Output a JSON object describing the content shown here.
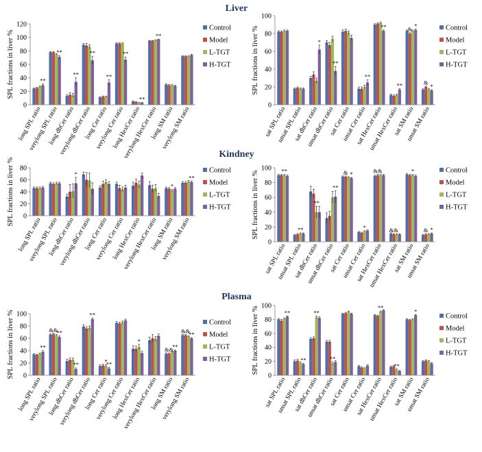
{
  "colors": {
    "Control": "#4F6FA8",
    "Model": "#C0504D",
    "L-TGT": "#9BBB59",
    "H-TGT": "#7F5FA0"
  },
  "legend": [
    "Control",
    "Model",
    "L-TGT",
    "H-TGT"
  ],
  "section_titles": [
    "Liver",
    "Kindney",
    "Plasma"
  ],
  "chart_data": [
    {
      "type": "bar",
      "section": "Liver",
      "panel": "left",
      "ylabel": "SPL fractions in liver %",
      "ylim": [
        0,
        120
      ],
      "yticks": [
        0,
        20,
        40,
        60,
        80,
        100,
        120
      ],
      "legend_position": "right",
      "categories": [
        "long SPL ratio",
        "verylong SPL ratio",
        "long dhCer ratio",
        "verylong dhCer ratio",
        "long Cer ratio",
        "verylong Cer ratio",
        "long HexCer ratio",
        "verylong HexCer ratio",
        "long SM ratio",
        "verylong SM ratio"
      ],
      "series": [
        {
          "name": "Control",
          "values": [
            24,
            78,
            13,
            89,
            11,
            91,
            5,
            95,
            30,
            72
          ],
          "errors": [
            1,
            1,
            2,
            2,
            1,
            1,
            0.5,
            0.5,
            1,
            1
          ]
        },
        {
          "name": "Model",
          "values": [
            25,
            78,
            15,
            88,
            12,
            91,
            4,
            95,
            29,
            72
          ],
          "errors": [
            1,
            1,
            3,
            3,
            1,
            1,
            0.5,
            0.5,
            1,
            1
          ]
        },
        {
          "name": "L-TGT",
          "values": [
            27,
            75,
            14,
            86,
            12,
            91,
            3,
            96,
            29,
            72
          ],
          "errors": [
            1,
            1,
            3,
            3,
            1,
            1,
            0.5,
            0.5,
            1,
            1
          ]
        },
        {
          "name": "H-TGT",
          "values": [
            29,
            71,
            34,
            66,
            33,
            67,
            3,
            97,
            28,
            74
          ],
          "errors": [
            2,
            2,
            6,
            6,
            4,
            4,
            0.5,
            0.5,
            1,
            1
          ]
        }
      ],
      "annotations": [
        {
          "category": 0,
          "series": 3,
          "label": "**"
        },
        {
          "category": 1,
          "series": 3,
          "label": "**"
        },
        {
          "category": 2,
          "series": 3,
          "label": "**"
        },
        {
          "category": 3,
          "series": 3,
          "label": "**"
        },
        {
          "category": 4,
          "series": 3,
          "label": "**"
        },
        {
          "category": 5,
          "series": 3,
          "label": "**"
        },
        {
          "category": 6,
          "series": 3,
          "label": "**"
        },
        {
          "category": 7,
          "series": 3,
          "label": "**"
        }
      ]
    },
    {
      "type": "bar",
      "section": "Liver",
      "panel": "right",
      "ylabel": "SPL fractions in liver %",
      "ylim": [
        0,
        100
      ],
      "yticks": [
        0,
        20,
        40,
        60,
        80,
        100
      ],
      "legend_position": "right",
      "categories": [
        "sat SPL ratio",
        "unsat SPL ratio",
        "sat dhCer ratio",
        "unsat dhCer ratio",
        "sat Cer ratio",
        "unsat Cer ratio",
        "sat HexCer ratio",
        "unsat HexCer ratio",
        "sat SM ratio",
        "unsat SM ratio"
      ],
      "series": [
        {
          "name": "Control",
          "values": [
            82,
            18,
            30,
            70,
            82,
            18,
            90,
            11,
            83,
            17
          ],
          "errors": [
            1,
            1,
            2,
            2,
            2,
            2,
            1,
            1,
            1,
            1
          ]
        },
        {
          "name": "Model",
          "values": [
            82,
            19,
            34,
            67,
            83,
            18,
            91,
            10,
            80,
            20
          ],
          "errors": [
            1,
            1,
            3,
            3,
            2,
            2,
            1,
            1,
            1,
            1
          ]
        },
        {
          "name": "L-TGT",
          "values": [
            83,
            18,
            27,
            74,
            81,
            20,
            92,
            11,
            83,
            17
          ],
          "errors": [
            1,
            1,
            3,
            3,
            2,
            2,
            1,
            1,
            1,
            1
          ]
        },
        {
          "name": "H-TGT",
          "values": [
            83,
            18,
            62,
            38,
            75,
            25,
            83,
            17,
            84,
            16
          ],
          "errors": [
            1,
            1,
            5,
            5,
            3,
            3,
            1,
            1,
            1,
            1
          ]
        }
      ],
      "annotations": [
        {
          "category": 2,
          "series": 3,
          "label": "*"
        },
        {
          "category": 3,
          "series": 3,
          "label": "**"
        },
        {
          "category": 5,
          "series": 3,
          "label": "**"
        },
        {
          "category": 6,
          "series": 3,
          "label": "**"
        },
        {
          "category": 7,
          "series": 3,
          "label": "**"
        },
        {
          "category": 8,
          "series": 1,
          "label": "&"
        },
        {
          "category": 8,
          "series": 3,
          "label": "*"
        },
        {
          "category": 9,
          "series": 1,
          "label": "&"
        },
        {
          "category": 9,
          "series": 3,
          "label": "*"
        }
      ]
    },
    {
      "type": "bar",
      "section": "Kindney",
      "panel": "left",
      "ylabel": "SPL fractions in liver %",
      "ylim": [
        0,
        80
      ],
      "yticks": [
        0,
        20,
        40,
        60,
        80
      ],
      "legend_position": "right",
      "categories": [
        "long SPL ratio",
        "verylong SPL ratio",
        "long dhCer ratio",
        "verylong dhCer ratio",
        "long Cer ratio",
        "verylong Cer ratio",
        "long HexCer ratio",
        "verylong HexCer ratio",
        "long SM ratio",
        "verylong SM ratio"
      ],
      "series": [
        {
          "name": "Control",
          "values": [
            46,
            54,
            32,
            69,
            47,
            53,
            50,
            51,
            46,
            55
          ],
          "errors": [
            2,
            2,
            4,
            4,
            3,
            3,
            6,
            6,
            2,
            2
          ]
        },
        {
          "name": "Model",
          "values": [
            46,
            53,
            40,
            60,
            53,
            46,
            55,
            45,
            45,
            55
          ],
          "errors": [
            2,
            2,
            12,
            12,
            5,
            5,
            6,
            6,
            2,
            2
          ]
        },
        {
          "name": "L-TGT",
          "values": [
            46,
            54,
            41,
            59,
            56,
            44,
            52,
            46,
            42,
            57
          ],
          "errors": [
            2,
            2,
            12,
            12,
            4,
            4,
            6,
            6,
            2,
            2
          ]
        },
        {
          "name": "H-TGT",
          "values": [
            47,
            54,
            54,
            45,
            53,
            47,
            67,
            33,
            45,
            56
          ],
          "errors": [
            2,
            2,
            10,
            10,
            4,
            4,
            4,
            4,
            2,
            2
          ]
        }
      ],
      "annotations": [
        {
          "category": 2,
          "series": 3,
          "label": "*"
        },
        {
          "category": 8,
          "series": 2,
          "label": "*"
        },
        {
          "category": 9,
          "series": 3,
          "label": "**"
        }
      ]
    },
    {
      "type": "bar",
      "section": "Kindney",
      "panel": "right",
      "ylabel": "SPL fractions in liver %",
      "ylim": [
        0,
        100
      ],
      "yticks": [
        0,
        20,
        40,
        60,
        80,
        100
      ],
      "legend_position": "right",
      "categories": [
        "sat SPL ratio",
        "unsat SPL ratio",
        "sat dhCer ratio",
        "unsat dhCer ratio",
        "sat Cer ratio",
        "unsat Cer ratio",
        "sat HexCer ratio",
        "unsat HexCer ratio",
        "sat SM ratio",
        "unsat SM ratio"
      ],
      "series": [
        {
          "name": "Control",
          "values": [
            90,
            9,
            68,
            32,
            88,
            13,
            89,
            11,
            91,
            9
          ],
          "errors": [
            1,
            1,
            7,
            7,
            1,
            1,
            1,
            1,
            1,
            1
          ]
        },
        {
          "name": "Model",
          "values": [
            90,
            10,
            65,
            35,
            88,
            12,
            90,
            10,
            90,
            10
          ],
          "errors": [
            1,
            1,
            6,
            6,
            1,
            1,
            1,
            1,
            1,
            1
          ]
        },
        {
          "name": "L-TGT",
          "values": [
            90,
            11,
            40,
            60,
            87,
            14,
            90,
            10,
            90,
            10
          ],
          "errors": [
            1,
            1,
            8,
            8,
            1,
            1,
            1,
            1,
            1,
            1
          ]
        },
        {
          "name": "H-TGT",
          "values": [
            89,
            11,
            40,
            61,
            86,
            15,
            90,
            10,
            89,
            11
          ],
          "errors": [
            1,
            1,
            8,
            8,
            1,
            1,
            1,
            1,
            1,
            1
          ]
        }
      ],
      "annotations": [
        {
          "category": 0,
          "series": 2,
          "label": "**"
        },
        {
          "category": 1,
          "series": 2,
          "label": "**"
        },
        {
          "category": 2,
          "series": 2,
          "label": "**"
        },
        {
          "category": 3,
          "series": 3,
          "label": "**"
        },
        {
          "category": 4,
          "series": 1,
          "label": "&"
        },
        {
          "category": 4,
          "series": 3,
          "label": "*"
        },
        {
          "category": 5,
          "series": 2,
          "label": "*"
        },
        {
          "category": 6,
          "series": 1,
          "label": "&&"
        },
        {
          "category": 7,
          "series": 1,
          "label": "&&"
        },
        {
          "category": 8,
          "series": 2,
          "label": "*"
        },
        {
          "category": 9,
          "series": 1,
          "label": "&"
        },
        {
          "category": 9,
          "series": 3,
          "label": "*"
        }
      ]
    },
    {
      "type": "bar",
      "section": "Plasma",
      "panel": "left",
      "ylabel": "SPL fractions in liver %",
      "ylim": [
        0,
        100
      ],
      "yticks": [
        0,
        20,
        40,
        60,
        80,
        100
      ],
      "legend_position": "right",
      "categories": [
        "long SPL ratio",
        "verylong SPL ratio",
        "long dhCer ratio",
        "verylong dhCer ratio",
        "long Cer ratio",
        "verylong Cer ratio",
        "long HexCer ratio",
        "verylong HexCer ratio",
        "long SM ratio",
        "verylong SM ratio"
      ],
      "series": [
        {
          "name": "Control",
          "values": [
            34,
            66,
            23,
            79,
            15,
            85,
            43,
            57,
            35,
            65
          ],
          "errors": [
            1,
            1,
            3,
            3,
            2,
            2,
            5,
            5,
            1,
            1
          ]
        },
        {
          "name": "Model",
          "values": [
            33,
            67,
            25,
            76,
            16,
            84,
            43,
            60,
            35,
            65
          ],
          "errors": [
            1,
            1,
            3,
            3,
            2,
            2,
            4,
            6,
            1,
            1
          ]
        },
        {
          "name": "L-TGT",
          "values": [
            35,
            65,
            25,
            77,
            15,
            86,
            46,
            59,
            37,
            63
          ],
          "errors": [
            1,
            1,
            3,
            3,
            2,
            2,
            4,
            4,
            1,
            1
          ]
        },
        {
          "name": "H-TGT",
          "values": [
            38,
            62,
            10,
            91,
            11,
            89,
            36,
            64,
            40,
            60
          ],
          "errors": [
            2,
            2,
            2,
            2,
            2,
            2,
            3,
            3,
            1,
            1
          ]
        }
      ],
      "annotations": [
        {
          "category": 0,
          "series": 3,
          "label": "**"
        },
        {
          "category": 1,
          "series": 1,
          "label": "&&"
        },
        {
          "category": 1,
          "series": 3,
          "label": "**"
        },
        {
          "category": 2,
          "series": 3,
          "label": "**"
        },
        {
          "category": 3,
          "series": 3,
          "label": "**"
        },
        {
          "category": 4,
          "series": 2,
          "label": "*"
        },
        {
          "category": 4,
          "series": 3,
          "label": "**"
        },
        {
          "category": 6,
          "series": 2,
          "label": "*"
        },
        {
          "category": 8,
          "series": 1,
          "label": "&&"
        },
        {
          "category": 8,
          "series": 3,
          "label": "**"
        },
        {
          "category": 9,
          "series": 1,
          "label": "&&"
        },
        {
          "category": 9,
          "series": 3,
          "label": "**"
        }
      ]
    },
    {
      "type": "bar",
      "section": "Plasma",
      "panel": "right",
      "ylabel": "SPL fractions in liver %",
      "ylim": [
        0,
        100
      ],
      "yticks": [
        0,
        20,
        40,
        60,
        80,
        100
      ],
      "legend_position": "right",
      "categories": [
        "sat SPL ratio",
        "unsat SPL ratio",
        "sat dhCer ratio",
        "unsat dhCer ratio",
        "sat Cer ratio",
        "unsat Cer ratio",
        "sat HexCer ratio",
        "unsat HexCer ratio",
        "sat SM ratio",
        "unsat SM ratio"
      ],
      "series": [
        {
          "name": "Control",
          "values": [
            80,
            20,
            52,
            48,
            88,
            13,
            86,
            12,
            80,
            20
          ],
          "errors": [
            1,
            2,
            2,
            2,
            1,
            1,
            1,
            1,
            1,
            1
          ]
        },
        {
          "name": "Model",
          "values": [
            78,
            21,
            53,
            48,
            89,
            11,
            85,
            13,
            79,
            21
          ],
          "errors": [
            2,
            2,
            2,
            2,
            1,
            1,
            1,
            1,
            1,
            1
          ]
        },
        {
          "name": "L-TGT",
          "values": [
            81,
            18,
            83,
            17,
            91,
            10,
            91,
            8,
            80,
            20
          ],
          "errors": [
            1,
            1,
            2,
            2,
            1,
            1,
            1,
            1,
            1,
            1
          ]
        },
        {
          "name": "H-TGT",
          "values": [
            84,
            16,
            82,
            19,
            88,
            14,
            93,
            6,
            86,
            17
          ],
          "errors": [
            1,
            1,
            2,
            2,
            1,
            1,
            1,
            1,
            1,
            1
          ]
        }
      ],
      "annotations": [
        {
          "category": 0,
          "series": 3,
          "label": "**"
        },
        {
          "category": 1,
          "series": 3,
          "label": "**"
        },
        {
          "category": 2,
          "series": 2,
          "label": "**"
        },
        {
          "category": 3,
          "series": 2,
          "label": "**"
        },
        {
          "category": 6,
          "series": 2,
          "label": "**"
        },
        {
          "category": 7,
          "series": 2,
          "label": "**"
        },
        {
          "category": 8,
          "series": 3,
          "label": "*"
        }
      ]
    }
  ]
}
